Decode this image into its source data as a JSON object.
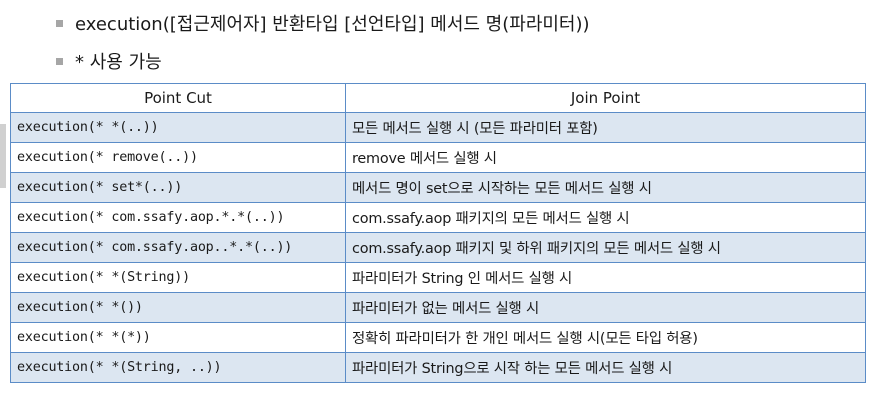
{
  "bullets": [
    "execution([접근제어자] 반환타입 [선언타입] 메서드 명(파라미터))",
    "* 사용 가능"
  ],
  "table": {
    "headers": [
      "Point Cut",
      "Join Point"
    ],
    "rows": [
      {
        "pointcut": "execution(* *(..))",
        "joinpoint": "모든 메서드 실행 시 (모든 파라미터 포함)"
      },
      {
        "pointcut": "execution(* remove(..))",
        "joinpoint": "remove 메서드 실행 시"
      },
      {
        "pointcut": "execution(* set*(..))",
        "joinpoint": "메서드 명이 set으로 시작하는 모든 메서드 실행 시"
      },
      {
        "pointcut": "execution(* com.ssafy.aop.*.*(..))",
        "joinpoint": "com.ssafy.aop 패키지의 모든 메서드 실행 시"
      },
      {
        "pointcut": "execution(* com.ssafy.aop..*.*(..))",
        "joinpoint": "com.ssafy.aop 패키지 및 하위 패키지의 모든 메서드 실행 시"
      },
      {
        "pointcut": "execution(* *(String))",
        "joinpoint": "파라미터가 String 인 메서드 실행 시"
      },
      {
        "pointcut": "execution(* *())",
        "joinpoint": "파라미터가 없는 메서드 실행 시"
      },
      {
        "pointcut": "execution(* *(*))",
        "joinpoint": "정확히 파라미터가 한 개인 메서드 실행 시(모든 타입 허용)"
      },
      {
        "pointcut": "execution(* *(String, ..))",
        "joinpoint": "파라미터가 String으로 시작 하는 모든 메서드 실행 시"
      }
    ]
  }
}
